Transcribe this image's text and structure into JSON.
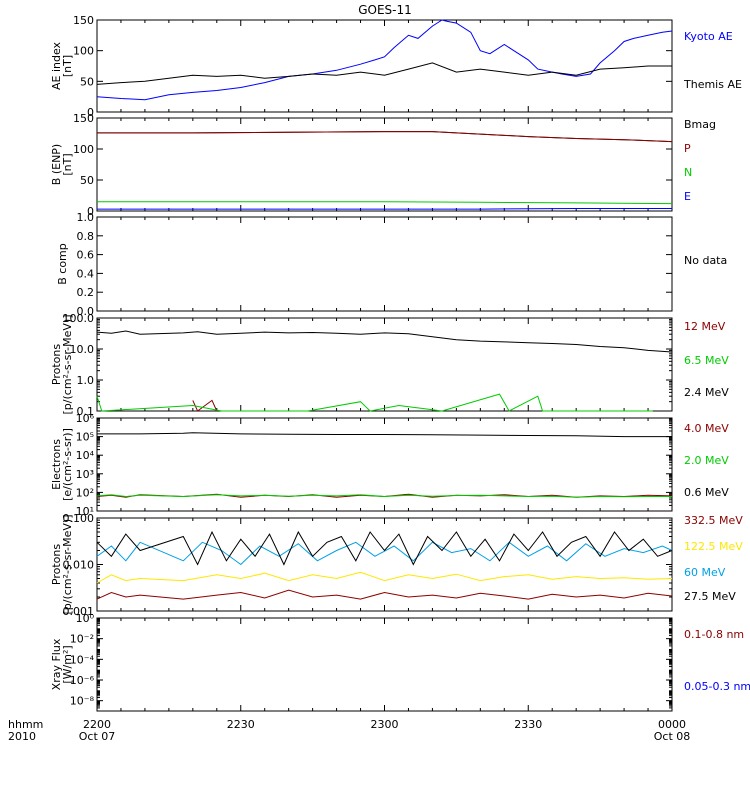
{
  "title": "GOES-11",
  "colors": {
    "black": "#000000",
    "blue": "#0000ff",
    "red": "#8b0000",
    "green": "#00cc00",
    "yellow": "#ffe600",
    "cyan": "#00a0e6"
  },
  "footer": {
    "hhmm": "hhmm",
    "year": "2010"
  },
  "chart_data": [
    {
      "type": "line",
      "ylabel": [
        "AE index",
        "[nT]"
      ],
      "ylim": [
        0,
        150
      ],
      "yticks": [
        0,
        50,
        100,
        150
      ],
      "ytick_labels": [
        "0",
        "50",
        "100",
        "150"
      ],
      "x_range_minutes": [
        0,
        120
      ],
      "xticks": [
        0,
        30,
        60,
        90,
        120
      ],
      "xtick_labels": [
        "2200",
        "2230",
        "2300",
        "2330",
        "0000"
      ],
      "xtick_dates": [
        "Oct 07",
        "",
        "",
        "",
        "Oct 08"
      ],
      "series": [
        {
          "name": "Kyoto AE",
          "color": "blue",
          "x": [
            0,
            5,
            10,
            15,
            20,
            25,
            30,
            35,
            40,
            45,
            50,
            55,
            58,
            60,
            62,
            65,
            67,
            70,
            72,
            73,
            75,
            78,
            80,
            82,
            85,
            87,
            90,
            92,
            95,
            97,
            100,
            103,
            105,
            108,
            110,
            112,
            115,
            118,
            120
          ],
          "y": [
            25,
            22,
            20,
            28,
            32,
            35,
            40,
            48,
            58,
            62,
            68,
            78,
            85,
            90,
            105,
            125,
            120,
            140,
            150,
            148,
            145,
            130,
            100,
            95,
            110,
            100,
            85,
            70,
            65,
            62,
            58,
            62,
            80,
            100,
            115,
            120,
            125,
            130,
            132
          ]
        },
        {
          "name": "Themis AE",
          "color": "black",
          "x": [
            0,
            5,
            10,
            15,
            20,
            25,
            30,
            35,
            40,
            45,
            50,
            55,
            60,
            65,
            70,
            75,
            80,
            85,
            90,
            95,
            100,
            105,
            110,
            115,
            120
          ],
          "y": [
            45,
            48,
            50,
            55,
            60,
            58,
            60,
            55,
            58,
            62,
            60,
            65,
            60,
            70,
            80,
            65,
            70,
            65,
            60,
            65,
            60,
            70,
            72,
            75,
            75
          ]
        }
      ],
      "legend": [
        "Kyoto AE",
        "Themis AE"
      ]
    },
    {
      "type": "line",
      "ylabel": [
        "B (ENP)",
        "[nT]"
      ],
      "ylim": [
        0,
        150
      ],
      "yticks": [
        0,
        50,
        100,
        150
      ],
      "ytick_labels": [
        "0",
        "50",
        "100",
        "150"
      ],
      "x_range_minutes": [
        0,
        120
      ],
      "series": [
        {
          "name": "Bmag",
          "color": "black",
          "x": [
            0,
            20,
            40,
            60,
            70,
            80,
            90,
            100,
            110,
            120
          ],
          "y": [
            126,
            126,
            127,
            128,
            128,
            124,
            120,
            117,
            115,
            112
          ]
        },
        {
          "name": "P",
          "color": "red",
          "x": [
            0,
            20,
            40,
            60,
            70,
            80,
            90,
            100,
            110,
            120
          ],
          "y": [
            126,
            126,
            127,
            128,
            128,
            124,
            120,
            117,
            115,
            112
          ]
        },
        {
          "name": "N",
          "color": "green",
          "x": [
            0,
            20,
            40,
            60,
            80,
            100,
            120
          ],
          "y": [
            15,
            15,
            15,
            15,
            14,
            13,
            12
          ]
        },
        {
          "name": "E",
          "color": "blue",
          "x": [
            0,
            20,
            40,
            60,
            80,
            100,
            120
          ],
          "y": [
            3,
            3,
            3,
            3,
            3,
            4,
            4
          ]
        }
      ],
      "legend": [
        "Bmag",
        "P",
        "N",
        "E"
      ]
    },
    {
      "type": "line",
      "ylabel": [
        "B comp"
      ],
      "ylim": [
        0,
        1.0
      ],
      "yticks": [
        0,
        0.2,
        0.4,
        0.6,
        0.8,
        1.0
      ],
      "ytick_labels": [
        "0.0",
        "0.2",
        "0.4",
        "0.6",
        "0.8",
        "1.0"
      ],
      "x_range_minutes": [
        0,
        120
      ],
      "series": [],
      "legend": [
        "No data"
      ]
    },
    {
      "type": "line",
      "scale": "log",
      "ylabel": [
        "Protons",
        "[p/(cm²-s-sr-MeV)]"
      ],
      "ylim": [
        0.1,
        100
      ],
      "yticks": [
        0.1,
        1,
        10,
        100
      ],
      "ytick_labels": [
        "0.1",
        "1.0",
        "10.0",
        "100.0"
      ],
      "x_range_minutes": [
        0,
        120
      ],
      "series": [
        {
          "name": "12 MeV",
          "color": "red",
          "x": [
            20,
            21,
            24,
            25
          ],
          "y": [
            0.22,
            0.1,
            0.22,
            0.1
          ]
        },
        {
          "name": "6.5 MeV",
          "color": "green",
          "x": [
            0,
            1,
            20,
            26,
            40,
            44,
            55,
            57,
            63,
            68,
            72,
            84,
            86,
            92,
            93,
            110,
            116
          ],
          "y": [
            0.3,
            0.1,
            0.15,
            0.1,
            0.1,
            0.1,
            0.2,
            0.1,
            0.15,
            0.12,
            0.1,
            0.35,
            0.1,
            0.3,
            0.1,
            0.1,
            0.1
          ]
        },
        {
          "name": "2.4 MeV",
          "color": "black",
          "x": [
            0,
            3,
            6,
            9,
            18,
            21,
            25,
            30,
            35,
            40,
            45,
            50,
            55,
            60,
            65,
            70,
            75,
            80,
            85,
            90,
            95,
            100,
            105,
            110,
            115,
            120
          ],
          "y": [
            35,
            32,
            38,
            30,
            33,
            36,
            30,
            32,
            35,
            33,
            34,
            32,
            30,
            33,
            31,
            25,
            20,
            18,
            17,
            16,
            15,
            14,
            12,
            11,
            9,
            8
          ]
        }
      ],
      "legend": [
        "12 MeV",
        "6.5 MeV",
        "2.4 MeV"
      ]
    },
    {
      "type": "line",
      "scale": "log",
      "ylabel": [
        "Electrons",
        "[e/(cm²-s-sr)]"
      ],
      "ylim": [
        10,
        1000000
      ],
      "yticks": [
        10,
        100,
        1000,
        10000,
        100000,
        1000000
      ],
      "ytick_labels": [
        "10¹",
        "10²",
        "10³",
        "10⁴",
        "10⁵",
        "10⁶"
      ],
      "x_range_minutes": [
        0,
        120
      ],
      "series": [
        {
          "name": "4.0 MeV",
          "color": "red",
          "x": [
            0,
            3,
            6,
            9,
            18,
            25,
            30,
            35,
            40,
            45,
            50,
            55,
            60,
            65,
            70,
            75,
            80,
            85,
            90,
            95,
            100,
            105,
            110,
            115,
            120
          ],
          "y": [
            60,
            70,
            55,
            75,
            60,
            80,
            55,
            70,
            60,
            75,
            55,
            70,
            60,
            80,
            55,
            70,
            65,
            75,
            60,
            70,
            55,
            65,
            60,
            70,
            65
          ]
        },
        {
          "name": "2.0 MeV",
          "color": "green",
          "x": [
            0,
            3,
            6,
            9,
            18,
            25,
            30,
            35,
            40,
            45,
            50,
            55,
            60,
            65,
            70,
            75,
            80,
            85,
            90,
            95,
            100,
            105,
            110,
            115,
            120
          ],
          "y": [
            65,
            75,
            60,
            70,
            60,
            75,
            65,
            70,
            62,
            70,
            65,
            75,
            60,
            70,
            62,
            68,
            70,
            65,
            60,
            62,
            55,
            60,
            58,
            60,
            60
          ]
        },
        {
          "name": "0.6 MeV",
          "color": "black",
          "x": [
            0,
            9,
            18,
            20,
            30,
            40,
            50,
            60,
            70,
            80,
            90,
            100,
            110,
            120
          ],
          "y": [
            140000,
            140000,
            150000,
            160000,
            140000,
            135000,
            130000,
            130000,
            125000,
            120000,
            115000,
            110000,
            100000,
            100000
          ]
        }
      ],
      "legend": [
        "4.0 MeV",
        "2.0 MeV",
        "0.6 MeV"
      ]
    },
    {
      "type": "line",
      "scale": "log",
      "ylabel": [
        "Protons",
        "[p/(cm²-s-sr-MeV)]"
      ],
      "ylim": [
        0.001,
        0.1
      ],
      "yticks": [
        0.001,
        0.01,
        0.1
      ],
      "ytick_labels": [
        "0.001",
        "0.010",
        "0.100"
      ],
      "x_range_minutes": [
        0,
        120
      ],
      "series": [
        {
          "name": "332.5 MeV",
          "color": "red",
          "x": [
            0,
            3,
            6,
            9,
            18,
            25,
            30,
            35,
            40,
            45,
            50,
            55,
            60,
            65,
            70,
            75,
            80,
            85,
            90,
            95,
            100,
            105,
            110,
            115,
            120
          ],
          "y": [
            0.0018,
            0.0025,
            0.002,
            0.0022,
            0.0018,
            0.0022,
            0.0025,
            0.0019,
            0.0028,
            0.002,
            0.0022,
            0.0018,
            0.0025,
            0.002,
            0.0022,
            0.0019,
            0.0024,
            0.0021,
            0.0018,
            0.0023,
            0.002,
            0.0022,
            0.0019,
            0.0024,
            0.0021
          ]
        },
        {
          "name": "122.5 MeV",
          "color": "yellow",
          "x": [
            0,
            3,
            6,
            9,
            18,
            25,
            30,
            35,
            40,
            45,
            50,
            55,
            60,
            65,
            70,
            75,
            80,
            85,
            90,
            95,
            100,
            105,
            110,
            115,
            120
          ],
          "y": [
            0.004,
            0.006,
            0.0045,
            0.005,
            0.0045,
            0.006,
            0.005,
            0.0065,
            0.0045,
            0.006,
            0.005,
            0.0068,
            0.0045,
            0.006,
            0.005,
            0.0062,
            0.0045,
            0.0055,
            0.006,
            0.0048,
            0.0055,
            0.005,
            0.0052,
            0.0048,
            0.005
          ]
        },
        {
          "name": "60 MeV",
          "color": "cyan",
          "x": [
            0,
            3,
            6,
            9,
            18,
            22,
            26,
            30,
            34,
            38,
            42,
            46,
            50,
            54,
            58,
            62,
            66,
            70,
            74,
            78,
            82,
            86,
            90,
            94,
            98,
            102,
            106,
            110,
            114,
            118,
            120
          ],
          "y": [
            0.015,
            0.025,
            0.012,
            0.03,
            0.012,
            0.03,
            0.02,
            0.01,
            0.025,
            0.015,
            0.028,
            0.012,
            0.02,
            0.03,
            0.015,
            0.025,
            0.012,
            0.03,
            0.018,
            0.022,
            0.012,
            0.03,
            0.015,
            0.025,
            0.012,
            0.028,
            0.015,
            0.022,
            0.018,
            0.025,
            0.02
          ]
        },
        {
          "name": "27.5 MeV",
          "color": "black",
          "x": [
            0,
            3,
            6,
            9,
            18,
            21,
            24,
            27,
            30,
            33,
            36,
            39,
            42,
            45,
            48,
            51,
            54,
            57,
            60,
            63,
            66,
            69,
            72,
            75,
            78,
            81,
            84,
            87,
            90,
            93,
            96,
            99,
            102,
            105,
            108,
            111,
            114,
            117,
            120
          ],
          "y": [
            0.03,
            0.015,
            0.045,
            0.02,
            0.04,
            0.01,
            0.05,
            0.012,
            0.035,
            0.015,
            0.045,
            0.01,
            0.05,
            0.015,
            0.03,
            0.04,
            0.012,
            0.05,
            0.02,
            0.045,
            0.01,
            0.04,
            0.02,
            0.05,
            0.015,
            0.035,
            0.012,
            0.045,
            0.02,
            0.05,
            0.015,
            0.03,
            0.04,
            0.015,
            0.05,
            0.02,
            0.035,
            0.015,
            0.02
          ]
        }
      ],
      "legend": [
        "332.5 MeV",
        "122.5 MeV",
        "60 MeV",
        "27.5 MeV"
      ]
    },
    {
      "type": "line",
      "scale": "log",
      "ylabel": [
        "Xray Flux",
        "[W/m²]"
      ],
      "ylim": [
        1e-09,
        1
      ],
      "yticks": [
        1e-08,
        1e-06,
        0.0001,
        0.01,
        1
      ],
      "ytick_labels": [
        "10⁻⁸",
        "10⁻⁶",
        "10⁻⁴",
        "10⁻²",
        "10⁰"
      ],
      "x_range_minutes": [
        0,
        120
      ],
      "series": [],
      "legend": [
        "0.1-0.8 nm",
        "0.05-0.3 nm"
      ]
    }
  ],
  "legend_colors": [
    [
      "blue",
      "black"
    ],
    [
      "black",
      "red",
      "green",
      "blue"
    ],
    [
      "black"
    ],
    [
      "red",
      "green",
      "black"
    ],
    [
      "red",
      "green",
      "black"
    ],
    [
      "red",
      "yellow",
      "cyan",
      "black"
    ],
    [
      "red",
      "blue"
    ]
  ]
}
